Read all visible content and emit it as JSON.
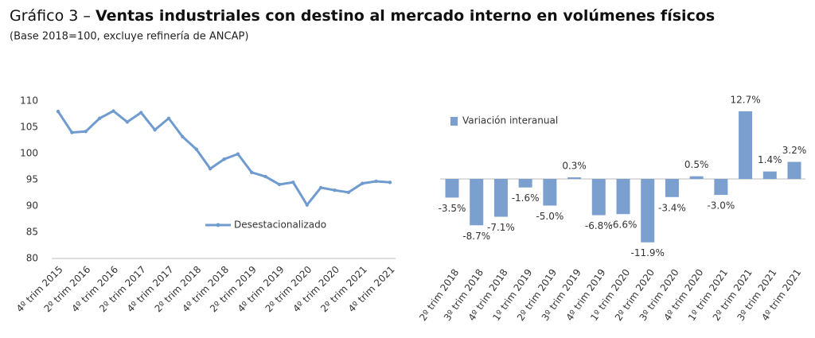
{
  "header": {
    "prefix": "Gráfico 3 –",
    "title": "Ventas industriales con destino al mercado interno en volúmenes físicos",
    "subtitle": "(Base 2018=100, excluye refinería de ANCAP)"
  },
  "chart_data": [
    {
      "type": "line",
      "categories": [
        "4º trim 2015",
        null,
        "2º trim 2016",
        null,
        "4º trim 2016",
        null,
        "2º trim 2017",
        null,
        "4º trim 2017",
        null,
        "2º trim 2018",
        null,
        "4º trim 2018",
        null,
        "2º trim 2019",
        null,
        "4º trim 2019",
        null,
        "2º trim 2020",
        null,
        "4º trim 2020",
        null,
        "2º trim 2021",
        null,
        "4º trim 2021"
      ],
      "series": [
        {
          "name": "Desestacionalizado",
          "color": "#6f9bcf",
          "values": [
            108,
            104,
            104.2,
            106.7,
            108.1,
            106,
            107.8,
            104.5,
            106.7,
            103.2,
            100.8,
            97.1,
            98.9,
            99.9,
            96.4,
            95.6,
            94.1,
            94.5,
            90.2,
            93.5,
            93,
            92.6,
            94.3,
            94.7,
            94.5
          ]
        }
      ],
      "ylim": [
        80,
        110
      ],
      "yticks": [
        80,
        85,
        90,
        95,
        100,
        105,
        110
      ],
      "grid": false
    },
    {
      "type": "bar",
      "categories": [
        "2º trim 2018",
        "3º trim 2018",
        "4º trim 2018",
        "1º trim 2019",
        "2º trim 2019",
        "3º trim 2019",
        "4º trim 2019",
        "1º trim 2020",
        "2º trim 2020",
        "3º trim 2020",
        "4º trim 2020",
        "1º trim 2021",
        "2º trim 2021",
        "3º trim 2021",
        "4º trim 2021"
      ],
      "series": [
        {
          "name": "Variación interanual",
          "color": "#7ba0d0",
          "values": [
            -3.5,
            -8.7,
            -7.1,
            -1.6,
            -5.0,
            0.3,
            -6.8,
            -6.6,
            -11.9,
            -3.4,
            0.5,
            -3.0,
            12.7,
            1.4,
            3.2
          ],
          "value_labels": [
            "-3.5%",
            "-8.7%",
            "-7.1%",
            "-1.6%",
            "-5.0%",
            "0.3%",
            "-6.8%",
            "-6.6%",
            "-11.9%",
            "-3.4%",
            "0.5%",
            "-3.0%",
            "12.7%",
            "1.4%",
            "3.2%"
          ]
        }
      ]
    }
  ]
}
